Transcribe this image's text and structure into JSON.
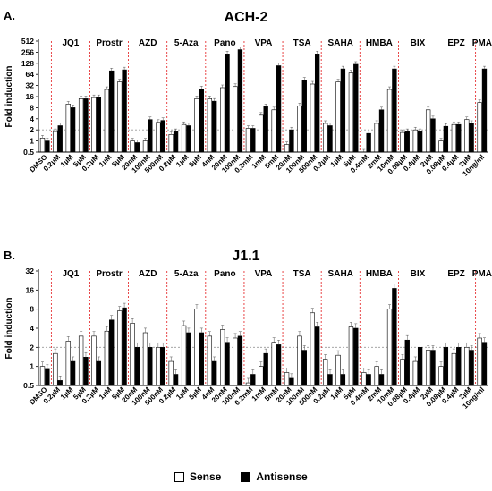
{
  "colors": {
    "sense": "#ffffff",
    "antisense": "#000000",
    "group_divider": "#e41a1c",
    "reference_line": "#999999"
  },
  "legend": {
    "sense": "Sense",
    "antisense": "Antisense"
  },
  "chart_data": [
    {
      "panel": "A.",
      "title": "ACH-2",
      "type": "bar",
      "scale": "log2",
      "ylabel": "Fold induction",
      "yticks": [
        "0.5",
        "1",
        "2",
        "4",
        "8",
        "16",
        "32",
        "64",
        "128",
        "256",
        "512"
      ],
      "ylim": [
        0.5,
        512
      ],
      "reference_line": 2,
      "groups": [
        {
          "label": "",
          "start": 0,
          "count": 1
        },
        {
          "label": "JQ1",
          "start": 1,
          "count": 3
        },
        {
          "label": "Prostr",
          "start": 4,
          "count": 3
        },
        {
          "label": "AZD",
          "start": 7,
          "count": 3
        },
        {
          "label": "5-Aza",
          "start": 10,
          "count": 3
        },
        {
          "label": "Pano",
          "start": 13,
          "count": 3
        },
        {
          "label": "VPA",
          "start": 16,
          "count": 3
        },
        {
          "label": "TSA",
          "start": 19,
          "count": 3
        },
        {
          "label": "SAHA",
          "start": 22,
          "count": 3
        },
        {
          "label": "HMBA",
          "start": 25,
          "count": 3
        },
        {
          "label": "BIX",
          "start": 28,
          "count": 3
        },
        {
          "label": "EPZ",
          "start": 31,
          "count": 3
        },
        {
          "label": "PMA",
          "start": 34,
          "count": 1
        }
      ],
      "categories": [
        "DMSO",
        "0.2µM",
        "1µM",
        "5µM",
        "0.2µM",
        "1µM",
        "5µM",
        "20nM",
        "100nM",
        "500nM",
        "0.2µM",
        "1µM",
        "5µM",
        "4nM",
        "20nM",
        "100nM",
        "0.2mM",
        "1mM",
        "5mM",
        "20nM",
        "100nM",
        "500nM",
        "0.2µM",
        "1µM",
        "5µM",
        "0.4mM",
        "2mM",
        "10mM",
        "0.08µM",
        "0.4µM",
        "2µM",
        "0.08µM",
        "0.4µM",
        "2µM",
        "10ng/ml"
      ],
      "series": [
        {
          "name": "Sense",
          "values": [
            1.2,
            1.8,
            10,
            14,
            15,
            25,
            40,
            1.0,
            1.0,
            3.2,
            1.5,
            2.8,
            14,
            14,
            28,
            30,
            2.2,
            5,
            7,
            0.8,
            9,
            35,
            3,
            40,
            70,
            0.5,
            3,
            25,
            1.7,
            2.0,
            7,
            1.0,
            2.8,
            3.8,
            11
          ]
        },
        {
          "name": "Antisense",
          "values": [
            1.0,
            2.6,
            8,
            14,
            15,
            80,
            85,
            0.9,
            3.8,
            3.6,
            1.8,
            2.6,
            26,
            12,
            230,
            300,
            2.2,
            8.5,
            110,
            2,
            45,
            230,
            2.6,
            90,
            120,
            1.6,
            7,
            90,
            1.8,
            1.8,
            4,
            2.5,
            2.8,
            3,
            90
          ]
        }
      ]
    },
    {
      "panel": "B.",
      "title": "J1.1",
      "type": "bar",
      "scale": "log2",
      "ylabel": "Fold induction",
      "yticks": [
        "0.5",
        "1",
        "2",
        "4",
        "8",
        "16",
        "32"
      ],
      "ylim": [
        0.5,
        32
      ],
      "reference_line": 2,
      "groups": [
        {
          "label": "",
          "start": 0,
          "count": 1
        },
        {
          "label": "JQ1",
          "start": 1,
          "count": 3
        },
        {
          "label": "Prostr",
          "start": 4,
          "count": 3
        },
        {
          "label": "AZD",
          "start": 7,
          "count": 3
        },
        {
          "label": "5-Aza",
          "start": 10,
          "count": 3
        },
        {
          "label": "Pano",
          "start": 13,
          "count": 3
        },
        {
          "label": "VPA",
          "start": 16,
          "count": 3
        },
        {
          "label": "TSA",
          "start": 19,
          "count": 3
        },
        {
          "label": "SAHA",
          "start": 22,
          "count": 3
        },
        {
          "label": "HMBA",
          "start": 25,
          "count": 3
        },
        {
          "label": "BIX",
          "start": 28,
          "count": 3
        },
        {
          "label": "EPZ",
          "start": 31,
          "count": 3
        },
        {
          "label": "PMA",
          "start": 34,
          "count": 1
        }
      ],
      "categories": [
        "DMSO",
        "0.2µM",
        "1µM",
        "5µM",
        "0.2µM",
        "1µM",
        "5µM",
        "20nM",
        "100nM",
        "500nM",
        "0.2µM",
        "1µM",
        "5µM",
        "4nM",
        "20nM",
        "100nM",
        "0.2mM",
        "1mM",
        "5mM",
        "20nM",
        "100nM",
        "500nM",
        "0.2µM",
        "1µM",
        "5µM",
        "0.4mM",
        "2mM",
        "10mM",
        "0.08µM",
        "0.4µM",
        "2µM",
        "0.08µM",
        "0.4µM",
        "2µM",
        "10ng/ml"
      ],
      "series": [
        {
          "name": "Sense",
          "values": [
            1.0,
            1.6,
            2.5,
            3.0,
            3.0,
            3.6,
            7.5,
            4.8,
            3.4,
            2.0,
            1.2,
            4.4,
            8.0,
            3.0,
            3.8,
            2.8,
            0.55,
            1.0,
            2.4,
            0.8,
            3.0,
            7.0,
            1.3,
            1.5,
            4.2,
            0.8,
            1.0,
            8.0,
            1.3,
            1.2,
            1.8,
            1.0,
            1.6,
            2.0,
            2.8
          ]
        },
        {
          "name": "Antisense",
          "values": [
            0.9,
            0.6,
            1.2,
            1.4,
            1.2,
            5.4,
            8.4,
            2.0,
            2.0,
            2.0,
            0.75,
            3.4,
            3.4,
            1.2,
            2.4,
            3.0,
            0.75,
            1.6,
            2.2,
            0.65,
            1.8,
            4.2,
            0.75,
            0.75,
            4.0,
            0.75,
            0.75,
            17,
            2.6,
            2.0,
            1.8,
            2.0,
            2.0,
            1.8,
            2.4
          ]
        }
      ]
    }
  ]
}
